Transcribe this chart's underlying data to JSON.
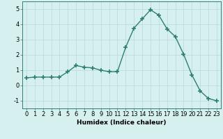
{
  "x": [
    0,
    1,
    2,
    3,
    4,
    5,
    6,
    7,
    8,
    9,
    10,
    11,
    12,
    13,
    14,
    15,
    16,
    17,
    18,
    19,
    20,
    21,
    22,
    23
  ],
  "y": [
    0.5,
    0.55,
    0.55,
    0.55,
    0.55,
    0.9,
    1.3,
    1.2,
    1.15,
    1.0,
    0.9,
    0.9,
    2.5,
    3.75,
    4.35,
    4.95,
    4.6,
    3.7,
    3.2,
    2.05,
    0.7,
    -0.35,
    -0.85,
    -1.0
  ],
  "line_color": "#2e7f6e",
  "marker": "+",
  "markersize": 4,
  "markeredgewidth": 1.2,
  "linewidth": 1.0,
  "bg_color": "#d6f0f0",
  "grid_color": "#b8d8d8",
  "xlabel": "Humidex (Indice chaleur)",
  "ylabel": "",
  "xlim": [
    -0.5,
    23.5
  ],
  "ylim": [
    -1.5,
    5.5
  ],
  "yticks": [
    -1,
    0,
    1,
    2,
    3,
    4,
    5
  ],
  "xticks": [
    0,
    1,
    2,
    3,
    4,
    5,
    6,
    7,
    8,
    9,
    10,
    11,
    12,
    13,
    14,
    15,
    16,
    17,
    18,
    19,
    20,
    21,
    22,
    23
  ],
  "xlabel_fontsize": 6.5,
  "tick_fontsize": 6.0
}
